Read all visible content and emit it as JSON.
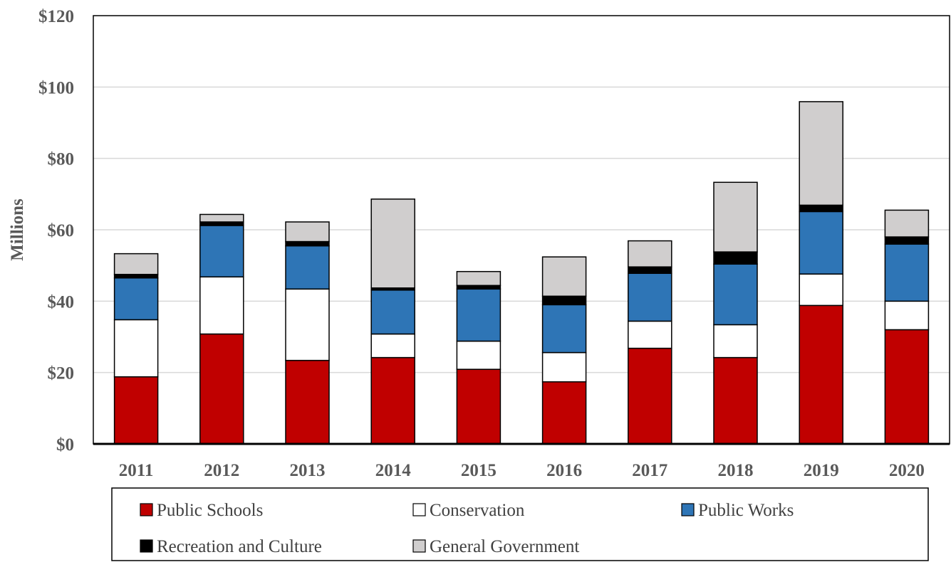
{
  "chart_data": {
    "type": "bar",
    "stacked": true,
    "ylabel": "Millions",
    "xlabel": "",
    "ylim": [
      0,
      120
    ],
    "yticks": [
      "$0",
      "$20",
      "$40",
      "$60",
      "$80",
      "$100",
      "$120"
    ],
    "ytick_values": [
      0,
      20,
      40,
      60,
      80,
      100,
      120
    ],
    "grid": true,
    "legend_position": "bottom",
    "categories": [
      "2011",
      "2012",
      "2013",
      "2014",
      "2015",
      "2016",
      "2017",
      "2018",
      "2019",
      "2020"
    ],
    "series": [
      {
        "name": "Public Schools",
        "color": "#c00000",
        "values": [
          18.8,
          30.8,
          23.4,
          24.2,
          20.9,
          17.4,
          26.8,
          24.2,
          38.8,
          32.0
        ]
      },
      {
        "name": "Conservation",
        "color": "#ffffff",
        "values": [
          16.0,
          16.0,
          20.0,
          6.6,
          7.9,
          8.2,
          7.6,
          9.2,
          8.8,
          8.0
        ]
      },
      {
        "name": "Public Works",
        "color": "#2e75b6",
        "values": [
          11.7,
          14.4,
          12.1,
          12.3,
          14.6,
          13.4,
          13.4,
          17.0,
          17.5,
          16.0
        ]
      },
      {
        "name": "Recreation and Culture",
        "color": "#000000",
        "values": [
          1.0,
          1.0,
          1.2,
          0.6,
          1.0,
          2.4,
          1.8,
          3.4,
          1.8,
          2.0
        ]
      },
      {
        "name": "General Government",
        "color": "#d0cece",
        "values": [
          5.8,
          2.1,
          5.5,
          24.9,
          3.9,
          11.0,
          7.3,
          19.5,
          29.0,
          7.5
        ]
      }
    ]
  }
}
